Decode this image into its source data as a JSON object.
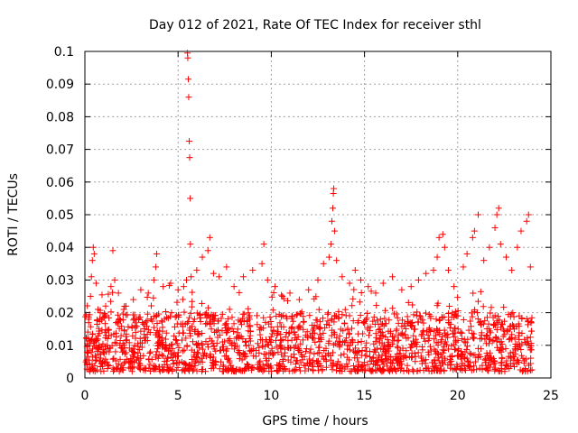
{
  "chart_data": {
    "type": "scatter",
    "title": "Day 012 of 2021, Rate Of TEC Index for receiver sthl",
    "xlabel": "GPS time / hours",
    "ylabel": "ROTI / TECUs",
    "xlim": [
      0,
      25
    ],
    "ylim": [
      0,
      0.1
    ],
    "x_ticks": [
      0,
      5,
      10,
      15,
      20,
      25
    ],
    "x_tick_labels": [
      "0",
      "5",
      "10",
      "15",
      "20",
      "25"
    ],
    "y_ticks": [
      0,
      0.01,
      0.02,
      0.03,
      0.04,
      0.05,
      0.06,
      0.07,
      0.08,
      0.09,
      0.1
    ],
    "y_tick_labels": [
      "0",
      "0.01",
      "0.02",
      "0.03",
      "0.04",
      "0.05",
      "0.06",
      "0.07",
      "0.08",
      "0.09",
      "0.1"
    ],
    "grid": true,
    "marker": "+",
    "series_color": "#ff0000",
    "series": [
      {
        "name": "ROTI",
        "points": [
          [
            0.1,
            0.012
          ],
          [
            0.2,
            0.018
          ],
          [
            0.3,
            0.025
          ],
          [
            0.35,
            0.031
          ],
          [
            0.4,
            0.036
          ],
          [
            0.45,
            0.04
          ],
          [
            0.5,
            0.038
          ],
          [
            0.6,
            0.029
          ],
          [
            0.7,
            0.021
          ],
          [
            1.1,
            0.019
          ],
          [
            1.4,
            0.028
          ],
          [
            1.5,
            0.039
          ],
          [
            1.6,
            0.03
          ],
          [
            1.8,
            0.026
          ],
          [
            2.2,
            0.022
          ],
          [
            2.6,
            0.024
          ],
          [
            3.0,
            0.027
          ],
          [
            3.4,
            0.026
          ],
          [
            3.7,
            0.03
          ],
          [
            3.8,
            0.034
          ],
          [
            3.85,
            0.038
          ],
          [
            4.2,
            0.028
          ],
          [
            4.6,
            0.029
          ],
          [
            5.0,
            0.027
          ],
          [
            5.3,
            0.028
          ],
          [
            5.45,
            0.03
          ],
          [
            5.5,
            0.0995
          ],
          [
            5.52,
            0.098
          ],
          [
            5.55,
            0.0915
          ],
          [
            5.57,
            0.086
          ],
          [
            5.6,
            0.0725
          ],
          [
            5.62,
            0.0675
          ],
          [
            5.65,
            0.055
          ],
          [
            5.66,
            0.041
          ],
          [
            5.7,
            0.031
          ],
          [
            6.0,
            0.033
          ],
          [
            6.3,
            0.037
          ],
          [
            6.6,
            0.039
          ],
          [
            6.7,
            0.043
          ],
          [
            6.9,
            0.032
          ],
          [
            7.2,
            0.031
          ],
          [
            7.6,
            0.034
          ],
          [
            8.0,
            0.028
          ],
          [
            8.5,
            0.031
          ],
          [
            9.0,
            0.033
          ],
          [
            9.5,
            0.035
          ],
          [
            9.6,
            0.041
          ],
          [
            9.8,
            0.03
          ],
          [
            10.2,
            0.028
          ],
          [
            10.6,
            0.025
          ],
          [
            11.0,
            0.026
          ],
          [
            11.5,
            0.024
          ],
          [
            12.0,
            0.027
          ],
          [
            12.5,
            0.03
          ],
          [
            12.8,
            0.035
          ],
          [
            13.1,
            0.037
          ],
          [
            13.2,
            0.041
          ],
          [
            13.25,
            0.048
          ],
          [
            13.3,
            0.052
          ],
          [
            13.33,
            0.0565
          ],
          [
            13.35,
            0.058
          ],
          [
            13.4,
            0.045
          ],
          [
            13.5,
            0.036
          ],
          [
            13.8,
            0.031
          ],
          [
            14.2,
            0.029
          ],
          [
            14.5,
            0.033
          ],
          [
            14.8,
            0.03
          ],
          [
            15.2,
            0.028
          ],
          [
            15.6,
            0.026
          ],
          [
            16.0,
            0.029
          ],
          [
            16.5,
            0.031
          ],
          [
            17.0,
            0.027
          ],
          [
            17.5,
            0.028
          ],
          [
            17.9,
            0.03
          ],
          [
            18.3,
            0.032
          ],
          [
            18.7,
            0.033
          ],
          [
            18.9,
            0.037
          ],
          [
            19.0,
            0.043
          ],
          [
            19.2,
            0.044
          ],
          [
            19.3,
            0.04
          ],
          [
            19.5,
            0.033
          ],
          [
            19.8,
            0.028
          ],
          [
            20.3,
            0.034
          ],
          [
            20.5,
            0.038
          ],
          [
            20.8,
            0.043
          ],
          [
            20.9,
            0.045
          ],
          [
            21.1,
            0.05
          ],
          [
            21.4,
            0.036
          ],
          [
            21.7,
            0.04
          ],
          [
            22.0,
            0.046
          ],
          [
            22.1,
            0.05
          ],
          [
            22.2,
            0.052
          ],
          [
            22.3,
            0.041
          ],
          [
            22.6,
            0.037
          ],
          [
            22.9,
            0.033
          ],
          [
            23.2,
            0.04
          ],
          [
            23.4,
            0.045
          ],
          [
            23.7,
            0.048
          ],
          [
            23.8,
            0.05
          ],
          [
            23.9,
            0.034
          ]
        ],
        "dense_band": {
          "x_range": [
            0,
            24
          ],
          "y_min": 0.002,
          "y_max": 0.02,
          "approx_point_count": 1800
        }
      }
    ]
  }
}
